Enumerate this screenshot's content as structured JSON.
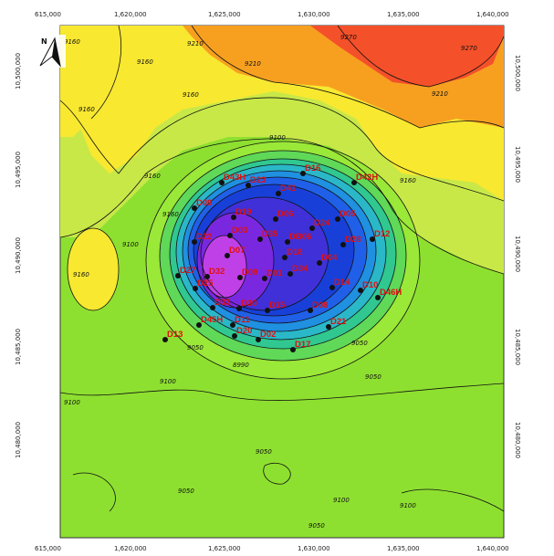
{
  "map": {
    "x_ticks": [
      "615,000",
      "1,620,000",
      "1,625,000",
      "1,630,000",
      "1,635,000",
      "1,640,000"
    ],
    "y_ticks_left": [
      "10,500,000",
      "10,495,000",
      "10,490,000",
      "10,485,000",
      "10,480,000"
    ],
    "y_ticks_right": [
      "10,500,000",
      "10,495,000",
      "10,490,000",
      "10,485,000",
      "10,480,000"
    ],
    "north_label": "N",
    "contour_labels": [
      "9160",
      "9160",
      "9160",
      "9210",
      "9160",
      "9210",
      "9270",
      "9270",
      "9210",
      "9160",
      "9100",
      "9160",
      "9100",
      "9160",
      "9050",
      "9050",
      "9050",
      "9100",
      "9100",
      "9050",
      "9100",
      "9050",
      "9100",
      "9160",
      "8990",
      "9050"
    ],
    "wells": [
      "D43H",
      "D23",
      "D16",
      "D42H",
      "D41",
      "D09",
      "D19",
      "D06",
      "D24",
      "D05",
      "D22",
      "D03",
      "D35",
      "DB06",
      "D28",
      "D12",
      "D07",
      "D18",
      "D04",
      "D27",
      "D32",
      "D09",
      "D01",
      "D34",
      "D14",
      "D10",
      "D46H",
      "D25",
      "D33",
      "D30",
      "D08",
      "D15",
      "D11",
      "D45H",
      "D20",
      "D21",
      "D13",
      "D02",
      "D17"
    ],
    "palette": {
      "ridge_red": "#f4502a",
      "orange": "#f7a020",
      "yellow": "#f8e830",
      "yellow_green": "#c8e848",
      "green": "#8ee030",
      "cyan": "#2ad0c8",
      "blue": "#2060e8",
      "deep_blue": "#1428c8",
      "purple": "#7a28e0",
      "magenta": "#c040e8"
    }
  }
}
